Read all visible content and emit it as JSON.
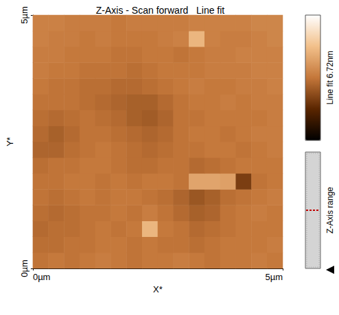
{
  "chart_data": {
    "type": "heatmap",
    "title": "Z-Axis - Scan forward   Line fit",
    "x_label": "X*",
    "y_label": "Y*",
    "xlim": [
      0,
      5
    ],
    "ylim": [
      0,
      5
    ],
    "xticks": [
      {
        "value": 0,
        "label": "0µm"
      },
      {
        "value": 5,
        "label": "5µm"
      }
    ],
    "yticks": [
      {
        "value": 0,
        "label": "0µm"
      },
      {
        "value": 5,
        "label": "5µm"
      }
    ],
    "colorbar_label": "Line fit 6.72nm",
    "colorbar_range": [
      0,
      6.72
    ],
    "z_range_label": "Z-Axis range",
    "cells": [
      [
        3.3,
        3.4,
        3.3,
        3.4,
        3.5,
        3.4,
        3.3,
        3.4,
        3.4,
        3.5,
        3.4,
        3.3,
        3.4,
        3.4,
        3.5,
        3.4
      ],
      [
        3.2,
        3.2,
        3.3,
        3.3,
        3.4,
        3.4,
        3.3,
        3.4,
        3.3,
        3.3,
        3.2,
        3.3,
        3.4,
        3.4,
        3.4,
        3.5
      ],
      [
        3.1,
        3.2,
        3.2,
        3.3,
        3.4,
        3.3,
        3.4,
        4.8,
        3.4,
        3.3,
        3.1,
        3.2,
        3.3,
        3.4,
        3.4,
        3.4
      ],
      [
        3.2,
        3.1,
        3.2,
        3.3,
        3.3,
        3.4,
        3.3,
        3.5,
        3.3,
        3.1,
        2.9,
        3.0,
        3.3,
        3.4,
        3.5,
        3.4
      ],
      [
        3.3,
        3.2,
        3.3,
        3.4,
        3.3,
        3.4,
        3.4,
        3.3,
        3.2,
        3.0,
        2.7,
        2.9,
        3.2,
        3.3,
        3.4,
        3.5
      ],
      [
        3.3,
        3.3,
        3.4,
        3.4,
        3.3,
        3.4,
        3.3,
        3.4,
        3.4,
        3.3,
        4.4,
        4.4,
        4.3,
        2.2,
        3.3,
        3.4
      ],
      [
        3.2,
        3.3,
        3.3,
        3.4,
        3.4,
        3.3,
        3.2,
        3.2,
        3.3,
        3.3,
        3.1,
        3.2,
        3.3,
        3.4,
        3.4,
        3.4
      ],
      [
        3.0,
        3.0,
        3.2,
        3.3,
        3.4,
        3.3,
        3.2,
        3.1,
        3.2,
        3.3,
        3.3,
        3.4,
        3.4,
        3.3,
        3.4,
        3.5
      ],
      [
        3.1,
        2.9,
        3.1,
        3.3,
        3.3,
        3.2,
        3.1,
        3.0,
        3.1,
        3.3,
        3.4,
        3.4,
        3.3,
        3.4,
        3.5,
        3.5
      ],
      [
        3.2,
        3.1,
        3.2,
        3.3,
        3.2,
        3.1,
        2.9,
        2.8,
        3.0,
        3.3,
        3.3,
        3.4,
        3.4,
        3.4,
        3.4,
        3.5
      ],
      [
        3.3,
        3.3,
        3.3,
        3.2,
        3.1,
        3.0,
        2.9,
        2.9,
        3.1,
        3.3,
        3.4,
        3.4,
        3.5,
        3.4,
        3.5,
        3.5
      ],
      [
        3.4,
        3.3,
        3.3,
        3.2,
        3.2,
        3.1,
        3.1,
        3.2,
        3.3,
        3.4,
        3.5,
        3.4,
        3.4,
        3.5,
        3.5,
        3.6
      ],
      [
        3.5,
        3.4,
        3.4,
        3.3,
        3.3,
        3.3,
        3.2,
        3.3,
        3.4,
        3.4,
        3.4,
        3.5,
        3.5,
        3.5,
        3.6,
        3.6
      ],
      [
        3.5,
        3.5,
        3.4,
        3.4,
        3.4,
        3.3,
        3.3,
        3.4,
        3.4,
        3.3,
        3.4,
        3.5,
        3.5,
        3.6,
        3.6,
        3.6
      ],
      [
        3.6,
        3.5,
        3.5,
        3.4,
        3.5,
        3.4,
        3.4,
        3.4,
        3.5,
        3.6,
        4.8,
        3.6,
        3.5,
        3.5,
        3.6,
        3.7
      ],
      [
        3.6,
        3.6,
        3.5,
        3.5,
        3.5,
        3.4,
        3.5,
        3.5,
        3.5,
        3.5,
        3.6,
        3.6,
        3.6,
        3.6,
        3.7,
        3.7
      ]
    ]
  }
}
